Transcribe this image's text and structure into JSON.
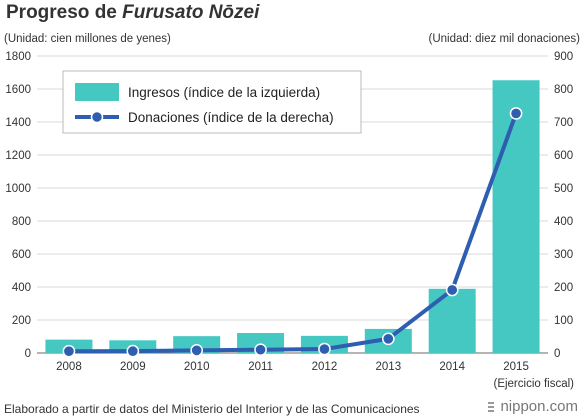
{
  "header": {
    "title_prefix": "Progreso de ",
    "title_italic": "Furusato Nōzei",
    "left_unit": "(Unidad: cien millones de yenes)",
    "right_unit": "(Unidad: diez mil donaciones)"
  },
  "footer": {
    "source": "Elaborado a partir de datos del Ministerio del Interior y de las Comunicaciones",
    "brand": "nippon.com",
    "x_note": "(Ejercicio fiscal)"
  },
  "chart_data": {
    "type": "bar",
    "categories": [
      "2008",
      "2009",
      "2010",
      "2011",
      "2012",
      "2013",
      "2014",
      "2015"
    ],
    "series": [
      {
        "name": "Ingresos (índice de la izquierda)",
        "type": "bar",
        "axis": "left",
        "color": "#45c8c2",
        "values": [
          81,
          77,
          102,
          121,
          104,
          146,
          389,
          1653
        ]
      },
      {
        "name": "Donaciones (índice de la derecha)",
        "type": "line",
        "axis": "right",
        "color": "#2e5eb0",
        "values": [
          5.4,
          5.6,
          8,
          10,
          12,
          43,
          191,
          726
        ]
      }
    ],
    "y_left": {
      "min": 0,
      "max": 1800,
      "ticks": [
        "0",
        "200",
        "400",
        "600",
        "800",
        "1000",
        "1200",
        "1400",
        "1600",
        "1800"
      ]
    },
    "y_right": {
      "min": 0,
      "max": 900,
      "ticks": [
        "0",
        "100",
        "200",
        "300",
        "400",
        "500",
        "600",
        "700",
        "800",
        "900"
      ]
    },
    "grid": true,
    "legend_position": "top-left",
    "colors": {
      "bar": "#45c8c2",
      "line": "#2e5eb0",
      "grid": "#d9d9d9",
      "axis": "#888888"
    }
  }
}
